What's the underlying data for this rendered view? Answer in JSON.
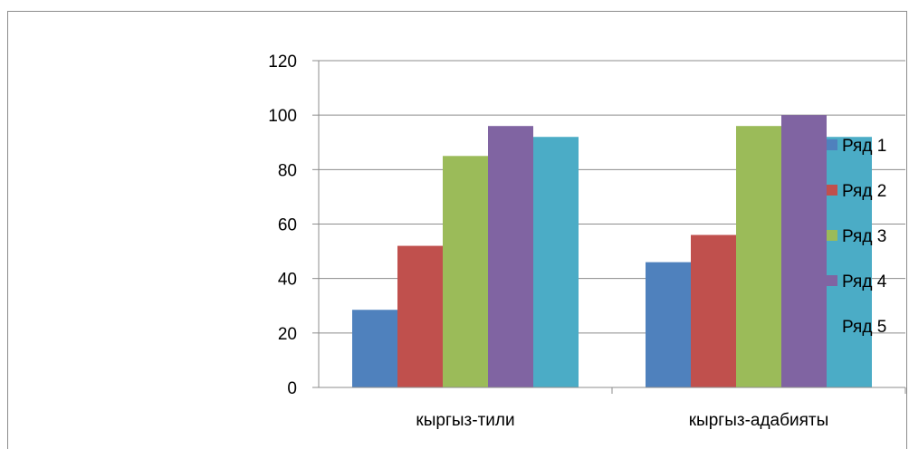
{
  "chart_data": {
    "type": "bar",
    "title": "",
    "xlabel": "",
    "ylabel": "",
    "categories": [
      "кыргыз-тили",
      "кыргыз-адабияты"
    ],
    "series": [
      {
        "name": "Ряд 1",
        "values": [
          28.5,
          46
        ],
        "color": "#4f81bd"
      },
      {
        "name": "Ряд 2",
        "values": [
          52,
          56
        ],
        "color": "#c0504d"
      },
      {
        "name": "Ряд 3",
        "values": [
          85,
          96
        ],
        "color": "#9bbb59"
      },
      {
        "name": "Ряд 4",
        "values": [
          96,
          100
        ],
        "color": "#8064a2"
      },
      {
        "name": "Ряд 5",
        "values": [
          92,
          92
        ],
        "color": "#4bacc6"
      }
    ],
    "ylim": [
      0,
      120
    ],
    "yticks": [
      "0",
      "20",
      "40",
      "60",
      "80",
      "100",
      "120"
    ],
    "grid": true,
    "legend": "right"
  }
}
